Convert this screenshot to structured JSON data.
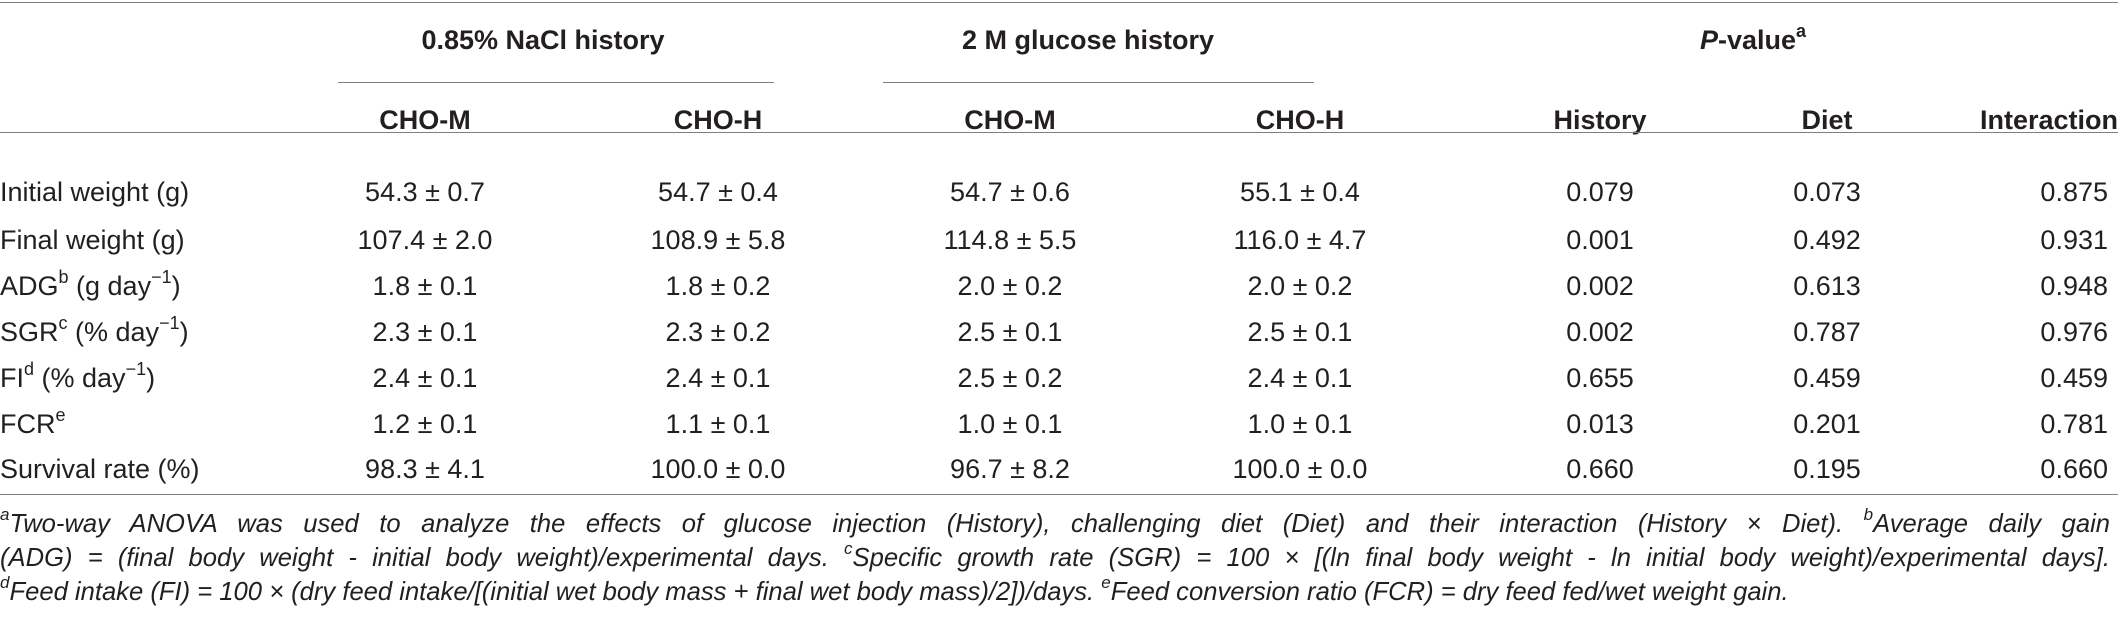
{
  "table": {
    "groups": {
      "nacl": "0.85% NaCl history",
      "glucose": "2 M glucose history",
      "pvalue_main": "P",
      "pvalue_rest": "-value",
      "pvalue_sup": "a"
    },
    "subheaders": {
      "cho_m_1": "CHO-M",
      "cho_h_1": "CHO-H",
      "cho_m_2": "CHO-M",
      "cho_h_2": "CHO-H",
      "history": "History",
      "diet": "Diet",
      "interaction": "Interaction"
    },
    "rows": [
      {
        "label": "Initial weight (g)",
        "sup": "",
        "unit": "",
        "unit_sup": "",
        "unit_end": "",
        "c1": "54.3 ± 0.7",
        "c2": "54.7 ± 0.4",
        "c3": "54.7 ± 0.6",
        "c4": "55.1 ± 0.4",
        "history": "0.079",
        "diet": "0.073",
        "interaction": "0.875"
      },
      {
        "label": "Final weight (g)",
        "sup": "",
        "unit": "",
        "unit_sup": "",
        "unit_end": "",
        "c1": "107.4 ± 2.0",
        "c2": "108.9 ± 5.8",
        "c3": "114.8 ± 5.5",
        "c4": "116.0 ± 4.7",
        "history": "0.001",
        "diet": "0.492",
        "interaction": "0.931"
      },
      {
        "label": "ADG",
        "sup": "b",
        "unit": " (g day",
        "unit_sup": "−1",
        "unit_end": ")",
        "c1": "1.8 ± 0.1",
        "c2": "1.8 ± 0.2",
        "c3": "2.0 ± 0.2",
        "c4": "2.0 ± 0.2",
        "history": "0.002",
        "diet": "0.613",
        "interaction": "0.948"
      },
      {
        "label": "SGR",
        "sup": "c",
        "unit": " (% day",
        "unit_sup": "−1",
        "unit_end": ")",
        "c1": "2.3 ± 0.1",
        "c2": "2.3 ± 0.2",
        "c3": "2.5 ± 0.1",
        "c4": "2.5 ± 0.1",
        "history": "0.002",
        "diet": "0.787",
        "interaction": "0.976"
      },
      {
        "label": "FI",
        "sup": "d",
        "unit": " (% day",
        "unit_sup": "−1",
        "unit_end": ")",
        "c1": "2.4 ± 0.1",
        "c2": "2.4 ± 0.1",
        "c3": "2.5 ± 0.2",
        "c4": "2.4 ± 0.1",
        "history": "0.655",
        "diet": "0.459",
        "interaction": "0.459"
      },
      {
        "label": "FCR",
        "sup": "e",
        "unit": "",
        "unit_sup": "",
        "unit_end": "",
        "c1": "1.2 ± 0.1",
        "c2": "1.1 ± 0.1",
        "c3": "1.0 ± 0.1",
        "c4": "1.0 ± 0.1",
        "history": "0.013",
        "diet": "0.201",
        "interaction": "0.781"
      },
      {
        "label": "Survival rate (%)",
        "sup": "",
        "unit": "",
        "unit_sup": "",
        "unit_end": "",
        "c1": "98.3 ± 4.1",
        "c2": "100.0 ± 0.0",
        "c3": "96.7 ± 8.2",
        "c4": "100.0 ± 0.0",
        "history": "0.660",
        "diet": "0.195",
        "interaction": "0.660"
      }
    ]
  },
  "footnotes": {
    "a_sup": "a",
    "a_text": "Two-way ANOVA was used to analyze the effects of glucose injection (History), challenging diet (Diet) and their interaction (History × Diet). ",
    "b_sup": "b",
    "b_text_1": "Average daily gain",
    "b_text_2": "(ADG) = (final body weight - initial body weight)/experimental days. ",
    "c_sup": "c",
    "c_text": "Specific growth rate (SGR) = 100 × [(ln final body weight - ln initial body weight)/experimental days].",
    "d_sup": "d",
    "d_text": "Feed intake (FI) = 100 × (dry feed intake/[(initial wet body mass + final wet body mass)/2])/days. ",
    "e_sup": "e",
    "e_text": "Feed conversion ratio (FCR) = dry feed fed/wet weight gain."
  }
}
